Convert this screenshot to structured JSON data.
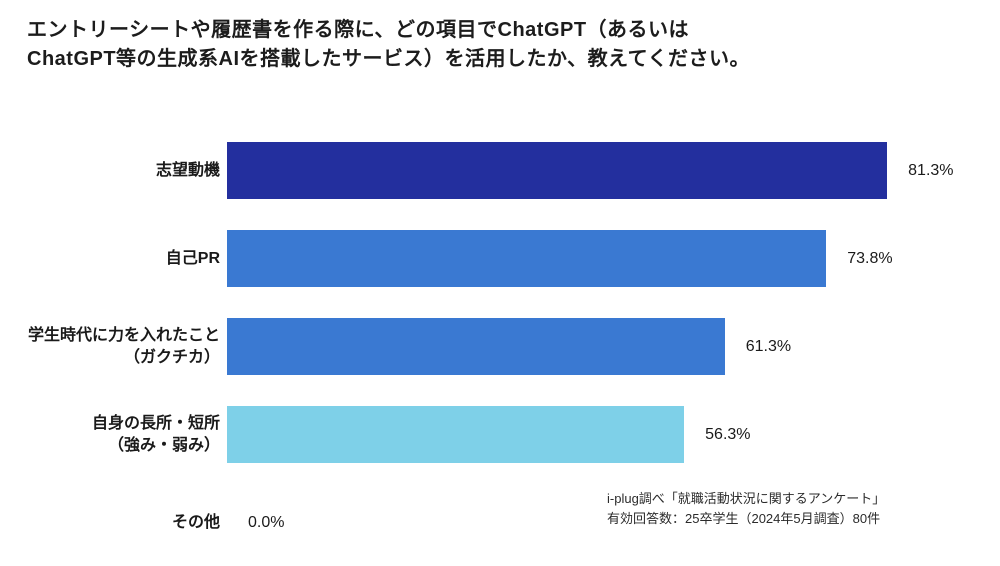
{
  "title": {
    "line1": "エントリーシートや履歴書を作る際に、どの項目でChatGPT（あるいは",
    "line2": "ChatGPT等の生成系AIを搭載したサービス）を活用したか、教えてください。"
  },
  "chart_data": {
    "type": "bar",
    "orientation": "horizontal",
    "title": "エントリーシートや履歴書を作る際に、どの項目でChatGPT（あるいはChatGPT等の生成系AIを搭載したサービス）を活用したか、教えてください。",
    "categories": [
      "志望動機",
      "自己PR",
      "学生時代に力を入れたこと\n（ガクチカ）",
      "自身の長所・短所\n（強み・弱み）",
      "その他"
    ],
    "values": [
      81.3,
      73.8,
      61.3,
      56.3,
      0.0
    ],
    "value_labels": [
      "81.3%",
      "73.8%",
      "61.3%",
      "56.3%",
      "0.0%"
    ],
    "bar_colors": [
      "#232f9e",
      "#3a79d2",
      "#3a79d2",
      "#7ed0e8",
      "transparent"
    ],
    "xlim": [
      0,
      100
    ],
    "grid": false,
    "legend": false,
    "unit": "%"
  },
  "source_note": {
    "line1": "i-plug調べ「就職活動状況に関するアンケート」",
    "line2": "有効回答数：25卒学生（2024年5月調査）80件"
  }
}
